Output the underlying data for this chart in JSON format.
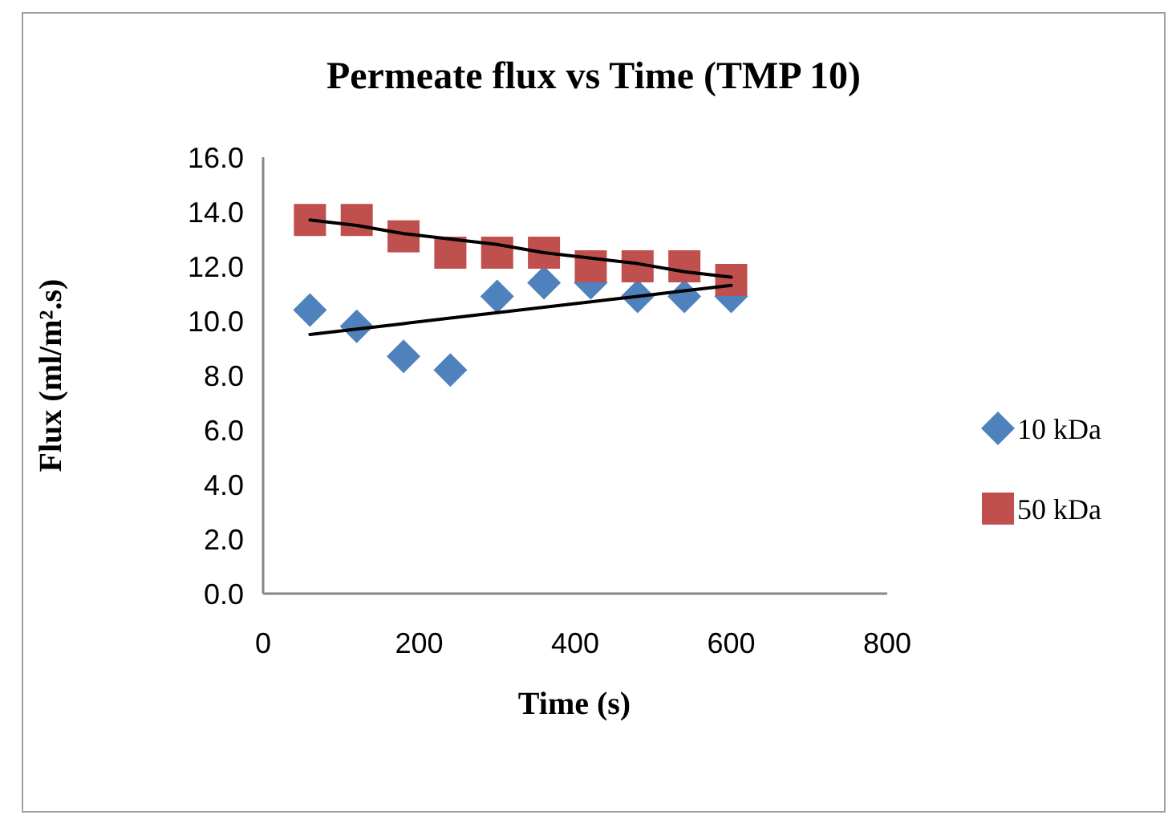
{
  "chart_data": {
    "type": "scatter",
    "title": "Permeate flux vs Time (TMP 10)",
    "xlabel": "Time (s)",
    "ylabel": "Flux (ml/m².s)",
    "x": [
      60,
      120,
      180,
      240,
      300,
      360,
      420,
      480,
      540,
      600
    ],
    "series": [
      {
        "name": "10 kDa",
        "color": "#4f81bd",
        "marker": "diamond",
        "values": [
          10.4,
          9.8,
          8.7,
          8.2,
          10.9,
          11.4,
          11.4,
          10.9,
          10.9,
          10.9
        ]
      },
      {
        "name": "50 kDa",
        "color": "#c0504d",
        "marker": "square",
        "values": [
          13.7,
          13.7,
          13.1,
          12.5,
          12.5,
          12.5,
          12.0,
          12.0,
          12.0,
          11.5
        ]
      },
      {
        "type": "line",
        "color": "#000000",
        "values": [
          9.5,
          9.7,
          9.9,
          10.1,
          10.3,
          10.5,
          10.7,
          10.9,
          11.1,
          11.3
        ]
      },
      {
        "type": "line",
        "color": "#000000",
        "values": [
          13.7,
          13.5,
          13.2,
          13.0,
          12.8,
          12.5,
          12.3,
          12.1,
          11.8,
          11.6
        ]
      }
    ],
    "xlim": [
      0,
      800
    ],
    "xticks": [
      0,
      200,
      400,
      600,
      800
    ],
    "ylim": [
      0,
      16
    ],
    "yticks": [
      {
        "value": 0,
        "label": "0.0"
      },
      {
        "value": 2,
        "label": "2.0"
      },
      {
        "value": 4,
        "label": "4.0"
      },
      {
        "value": 6,
        "label": "6.0"
      },
      {
        "value": 8,
        "label": "8.0"
      },
      {
        "value": 10,
        "label": "10.0"
      },
      {
        "value": 12,
        "label": "12.0"
      },
      {
        "value": 14,
        "label": "14.0"
      },
      {
        "value": 16,
        "label": "16.0"
      }
    ],
    "legend": "right"
  }
}
